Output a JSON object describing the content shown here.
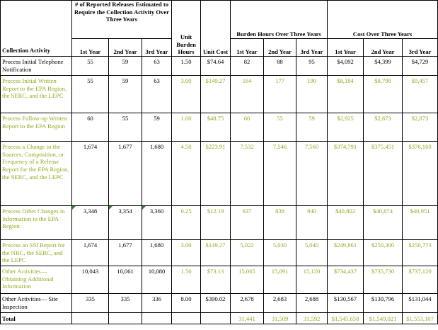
{
  "headers": {
    "collection_activity": "Collection Activity",
    "releases_group": "# of Reported Releases Estimated to Require the Collection Activity Over Three Years",
    "unit_burden": "Unit Burden Hours",
    "unit_cost": "Unit Cost",
    "burden_group": "Burden Hours Over Three Years",
    "cost_group": "Cost Over Three Years",
    "year1": "1st Year",
    "year2": "2nd Year",
    "year3": "3rd Year"
  },
  "rows": [
    {
      "activity": "Process Initial Telephone Notification",
      "r1": "55",
      "r2": "59",
      "r3": "63",
      "unit_hours": "1.50",
      "unit_cost": "$74.64",
      "b1": "82",
      "b2": "88",
      "b3": "95",
      "c1": "$4,092",
      "c2": "$4,399",
      "c3": "$4,729"
    },
    {
      "activity": "Process Initial Written Report to the EPA Region, the SERC, and the LEPC",
      "r1": "55",
      "r2": "59",
      "r3": "63",
      "unit_hours": "3.00",
      "unit_cost": "$149.27",
      "b1": "164",
      "b2": "177",
      "b3": "190",
      "c1": "$8,184",
      "c2": "$8,798",
      "c3": "$9,457"
    },
    {
      "activity": "Process Follow-up Written Report to the EPA Region",
      "r1": "60",
      "r2": "55",
      "r3": "59",
      "unit_hours": "1.00",
      "unit_cost": "$48.75",
      "b1": "60",
      "b2": "55",
      "b3": "59",
      "c1": "$2,925",
      "c2": "$2,673",
      "c3": "$2,873"
    },
    {
      "activity": "Process a Change in the Sources, Composition, or Frequency of a Release Report for the EPA Region, the SERC, and the LEPC",
      "r1": "1,674",
      "r2": "1,677",
      "r3": "1,680",
      "unit_hours": "4.50",
      "unit_cost": "$223.91",
      "b1": "7,532",
      "b2": "7,546",
      "b3": "7,560",
      "c1": "$374,791",
      "c2": "$375,451",
      "c3": "$376,160"
    },
    {
      "activity": "Process Other Changes in Information to the EPA Region",
      "r1": "3,348",
      "r2": "3,354",
      "r3": "3,360",
      "unit_hours": "0.25",
      "unit_cost": "$12.19",
      "b1": "837",
      "b2": "838",
      "b3": "840",
      "c1": "$40,802",
      "c2": "$40,874",
      "c3": "$40,951"
    },
    {
      "activity": "Process an SSI Report for the NRC, the SERC, and the LEPC",
      "r1": "1,674",
      "r2": "1,677",
      "r3": "1,680",
      "unit_hours": "3.00",
      "unit_cost": "$149.27",
      "b1": "5,022",
      "b2": "5,030",
      "b3": "5,040",
      "c1": "$249,861",
      "c2": "$250,300",
      "c3": "$250,773"
    },
    {
      "activity": "Other Activities— Obtaining Additional Information",
      "r1": "10,043",
      "r2": "10,061",
      "r3": "10,080",
      "unit_hours": "1.50",
      "unit_cost": "$73.13",
      "b1": "15,065",
      "b2": "15,091",
      "b3": "15,120",
      "c1": "$734,437",
      "c2": "$735,730",
      "c3": "$737,120"
    },
    {
      "activity": "Other Activities— Site Inspection",
      "r1": "335",
      "r2": "335",
      "r3": "336",
      "unit_hours": "8.00",
      "unit_cost": "$390.02",
      "b1": "2,678",
      "b2": "2,683",
      "b3": "2,688",
      "c1": "$130,567",
      "c2": "$130,796",
      "c3": "$131,044"
    }
  ],
  "total": {
    "label": "Total",
    "b1": "31,441",
    "b2": "31,509",
    "b3": "31,592",
    "c1": "$1,545,658",
    "c2": "$1,549,021",
    "c3": "$1,553,107"
  },
  "colors": {
    "green_text": "#8faa1e",
    "flag_marker": "#2f7d32"
  }
}
